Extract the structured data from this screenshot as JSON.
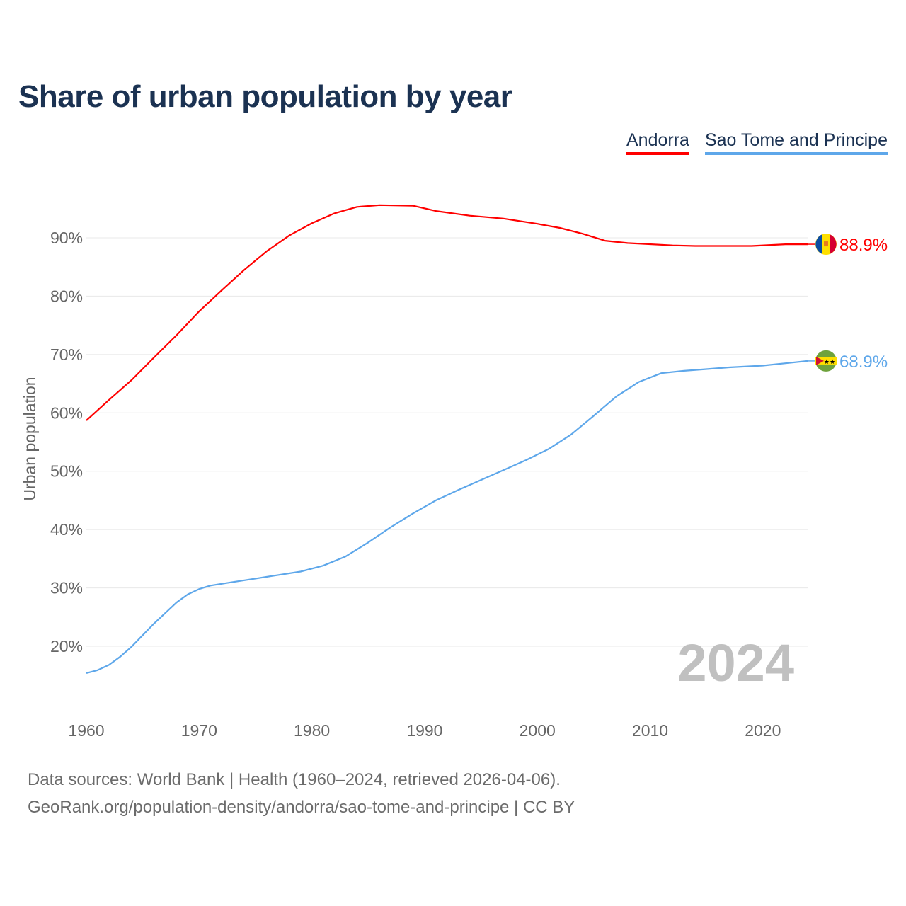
{
  "chart_data": {
    "type": "line",
    "title": "Share of urban population by year",
    "ylabel": "Urban population",
    "xlabel": "",
    "xlim": [
      1960,
      2024
    ],
    "ylim": [
      10,
      97
    ],
    "x_ticks": [
      1960,
      1970,
      1980,
      1990,
      2000,
      2010,
      2020
    ],
    "x_tick_labels": [
      "1960",
      "1970",
      "1980",
      "1990",
      "2000",
      "2010",
      "2020"
    ],
    "y_ticks": [
      20,
      30,
      40,
      50,
      60,
      70,
      80,
      90
    ],
    "y_tick_labels": [
      "20%",
      "30%",
      "40%",
      "50%",
      "60%",
      "70%",
      "80%",
      "90%"
    ],
    "grid": true,
    "legend_placement": "top-right",
    "year_watermark": "2024",
    "series": [
      {
        "name": "Andorra",
        "color": "#ff0000",
        "end_label": "88.9%",
        "x": [
          1960,
          1962,
          1964,
          1966,
          1968,
          1970,
          1972,
          1974,
          1976,
          1978,
          1980,
          1982,
          1984,
          1986,
          1989,
          1991,
          1994,
          1997,
          2000,
          2002,
          2004,
          2006,
          2008,
          2012,
          2014,
          2019,
          2022,
          2024
        ],
        "y": [
          58.7,
          62.2,
          65.6,
          69.5,
          73.3,
          77.4,
          81.0,
          84.5,
          87.7,
          90.4,
          92.5,
          94.2,
          95.3,
          95.6,
          95.5,
          94.6,
          93.8,
          93.3,
          92.4,
          91.7,
          90.7,
          89.5,
          89.1,
          88.7,
          88.6,
          88.6,
          88.9,
          88.9
        ]
      },
      {
        "name": "Sao Tome and Principe",
        "color": "#5ea7ea",
        "end_label": "68.9%",
        "x": [
          1960,
          1961,
          1962,
          1963,
          1964,
          1966,
          1968,
          1969,
          1970,
          1971,
          1973,
          1975,
          1977,
          1979,
          1981,
          1983,
          1985,
          1987,
          1989,
          1991,
          1993,
          1995,
          1997,
          1999,
          2001,
          2003,
          2005,
          2007,
          2009,
          2011,
          2013,
          2015,
          2017,
          2020,
          2022,
          2024
        ],
        "y": [
          15.4,
          15.9,
          16.8,
          18.2,
          19.9,
          23.9,
          27.5,
          28.9,
          29.8,
          30.4,
          31.0,
          31.6,
          32.2,
          32.8,
          33.8,
          35.4,
          37.8,
          40.4,
          42.8,
          45.0,
          46.8,
          48.5,
          50.2,
          51.9,
          53.8,
          56.3,
          59.5,
          62.8,
          65.3,
          66.8,
          67.2,
          67.5,
          67.8,
          68.1,
          68.5,
          68.9
        ]
      }
    ]
  },
  "footer": {
    "line1": "Data sources: World Bank | Health (1960–2024, retrieved 2026-04-06).",
    "line2": "GeoRank.org/population-density/andorra/sao-tome-and-principe | CC BY"
  }
}
